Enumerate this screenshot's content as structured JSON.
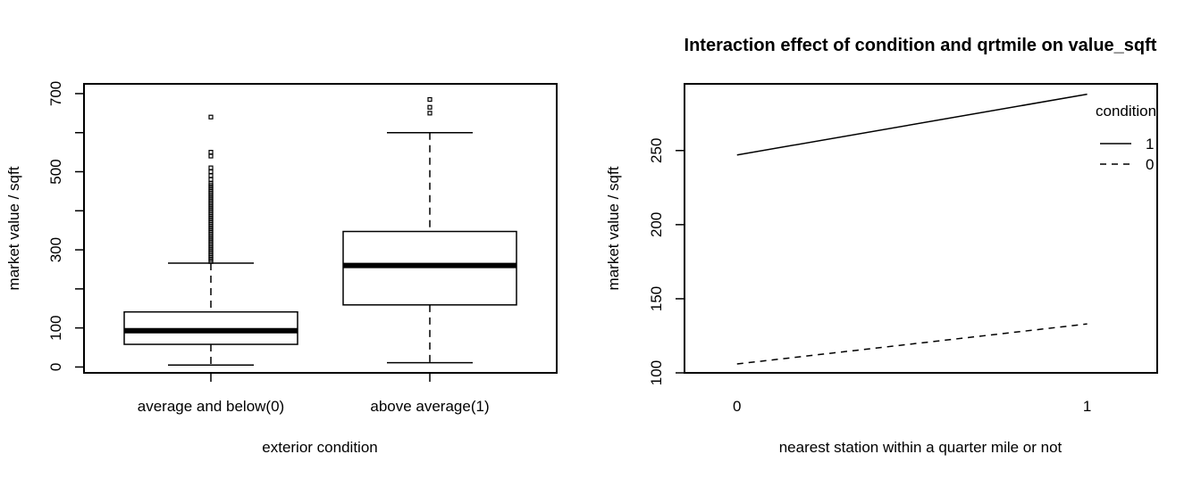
{
  "chart_data": [
    {
      "type": "boxplot",
      "title": "",
      "xlabel": "exterior condition",
      "ylabel": "market value / sqft",
      "ylim": [
        -15,
        725
      ],
      "yticks": [
        0,
        100,
        200,
        300,
        400,
        500,
        600,
        700
      ],
      "ytick_labels": [
        "0",
        "100",
        "",
        "300",
        "",
        "500",
        "",
        "700"
      ],
      "categories": [
        "average and below(0)",
        "above average(1)"
      ],
      "boxes": [
        {
          "category": "average and below(0)",
          "whisker_low": 5,
          "q1": 58,
          "median": 93,
          "q3": 141,
          "whisker_high": 266,
          "outliers": [
            270,
            275,
            280,
            285,
            290,
            295,
            300,
            305,
            310,
            315,
            320,
            325,
            330,
            335,
            340,
            345,
            350,
            355,
            360,
            365,
            370,
            375,
            380,
            385,
            390,
            395,
            400,
            405,
            410,
            415,
            420,
            425,
            430,
            435,
            440,
            445,
            450,
            455,
            460,
            465,
            470,
            480,
            490,
            500,
            510,
            540,
            550,
            640
          ]
        },
        {
          "category": "above average(1)",
          "whisker_low": 11,
          "q1": 159,
          "median": 260,
          "q3": 347,
          "whisker_high": 600,
          "outliers": [
            650,
            665,
            685
          ]
        }
      ]
    },
    {
      "type": "line",
      "title": "Interaction effect of condition and qrtmile on value_sqft",
      "xlabel": "nearest station within a quarter mile or not",
      "ylabel": "market value / sqft",
      "x": [
        0,
        1
      ],
      "xlim": [
        -0.15,
        1.2
      ],
      "ylim": [
        100,
        295
      ],
      "yticks": [
        100,
        150,
        200,
        250
      ],
      "xticks": [
        0,
        1
      ],
      "legend_title": "condition",
      "legend_position": "top-right",
      "series": [
        {
          "name": "1",
          "style": "solid",
          "values": [
            247,
            288
          ]
        },
        {
          "name": "0",
          "style": "dashed",
          "values": [
            106,
            133
          ]
        }
      ]
    }
  ]
}
